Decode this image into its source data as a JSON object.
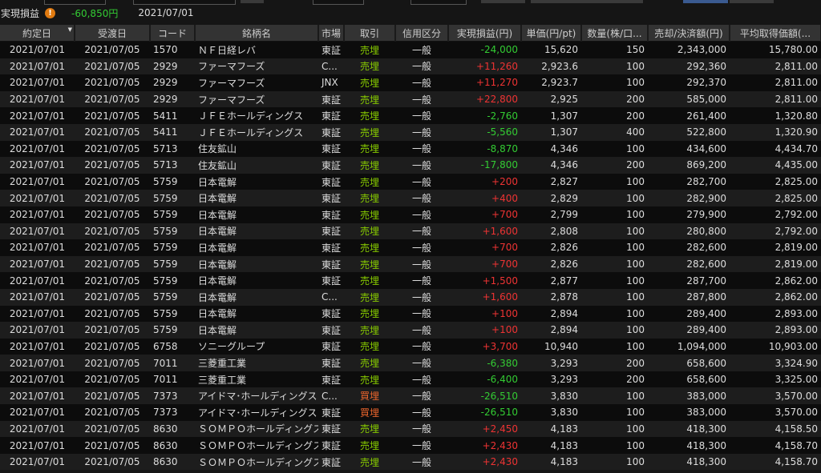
{
  "summary": {
    "label": "実現損益",
    "warn_icon": "exclamation-icon",
    "total": "-60,850円",
    "date": "2021/07/01"
  },
  "colors": {
    "loss": "#33cc33",
    "gain": "#ee3333",
    "sell": "#88cc00",
    "buy": "#e8642c"
  },
  "columns": [
    "約定日",
    "受渡日",
    "コード",
    "銘柄名",
    "市場",
    "取引",
    "信用区分",
    "実現損益(円)",
    "単価(円/pt)",
    "数量(株/口...",
    "売却/決済額(円)",
    "平均取得価額(..."
  ],
  "rows": [
    [
      "2021/07/01",
      "2021/07/05",
      "1570",
      "ＮＦ日経レバ",
      "東証",
      "売埋",
      "一般",
      "-24,000",
      "15,620",
      "150",
      "2,343,000",
      "15,780.00"
    ],
    [
      "2021/07/01",
      "2021/07/05",
      "2929",
      "ファーマフーズ",
      "C...",
      "売埋",
      "一般",
      "+11,260",
      "2,923.6",
      "100",
      "292,360",
      "2,811.00"
    ],
    [
      "2021/07/01",
      "2021/07/05",
      "2929",
      "ファーマフーズ",
      "JNX",
      "売埋",
      "一般",
      "+11,270",
      "2,923.7",
      "100",
      "292,370",
      "2,811.00"
    ],
    [
      "2021/07/01",
      "2021/07/05",
      "2929",
      "ファーマフーズ",
      "東証",
      "売埋",
      "一般",
      "+22,800",
      "2,925",
      "200",
      "585,000",
      "2,811.00"
    ],
    [
      "2021/07/01",
      "2021/07/05",
      "5411",
      "ＪＦＥホールディングス",
      "東証",
      "売埋",
      "一般",
      "-2,760",
      "1,307",
      "200",
      "261,400",
      "1,320.80"
    ],
    [
      "2021/07/01",
      "2021/07/05",
      "5411",
      "ＪＦＥホールディングス",
      "東証",
      "売埋",
      "一般",
      "-5,560",
      "1,307",
      "400",
      "522,800",
      "1,320.90"
    ],
    [
      "2021/07/01",
      "2021/07/05",
      "5713",
      "住友鉱山",
      "東証",
      "売埋",
      "一般",
      "-8,870",
      "4,346",
      "100",
      "434,600",
      "4,434.70"
    ],
    [
      "2021/07/01",
      "2021/07/05",
      "5713",
      "住友鉱山",
      "東証",
      "売埋",
      "一般",
      "-17,800",
      "4,346",
      "200",
      "869,200",
      "4,435.00"
    ],
    [
      "2021/07/01",
      "2021/07/05",
      "5759",
      "日本電解",
      "東証",
      "売埋",
      "一般",
      "+200",
      "2,827",
      "100",
      "282,700",
      "2,825.00"
    ],
    [
      "2021/07/01",
      "2021/07/05",
      "5759",
      "日本電解",
      "東証",
      "売埋",
      "一般",
      "+400",
      "2,829",
      "100",
      "282,900",
      "2,825.00"
    ],
    [
      "2021/07/01",
      "2021/07/05",
      "5759",
      "日本電解",
      "東証",
      "売埋",
      "一般",
      "+700",
      "2,799",
      "100",
      "279,900",
      "2,792.00"
    ],
    [
      "2021/07/01",
      "2021/07/05",
      "5759",
      "日本電解",
      "東証",
      "売埋",
      "一般",
      "+1,600",
      "2,808",
      "100",
      "280,800",
      "2,792.00"
    ],
    [
      "2021/07/01",
      "2021/07/05",
      "5759",
      "日本電解",
      "東証",
      "売埋",
      "一般",
      "+700",
      "2,826",
      "100",
      "282,600",
      "2,819.00"
    ],
    [
      "2021/07/01",
      "2021/07/05",
      "5759",
      "日本電解",
      "東証",
      "売埋",
      "一般",
      "+700",
      "2,826",
      "100",
      "282,600",
      "2,819.00"
    ],
    [
      "2021/07/01",
      "2021/07/05",
      "5759",
      "日本電解",
      "東証",
      "売埋",
      "一般",
      "+1,500",
      "2,877",
      "100",
      "287,700",
      "2,862.00"
    ],
    [
      "2021/07/01",
      "2021/07/05",
      "5759",
      "日本電解",
      "C...",
      "売埋",
      "一般",
      "+1,600",
      "2,878",
      "100",
      "287,800",
      "2,862.00"
    ],
    [
      "2021/07/01",
      "2021/07/05",
      "5759",
      "日本電解",
      "東証",
      "売埋",
      "一般",
      "+100",
      "2,894",
      "100",
      "289,400",
      "2,893.00"
    ],
    [
      "2021/07/01",
      "2021/07/05",
      "5759",
      "日本電解",
      "東証",
      "売埋",
      "一般",
      "+100",
      "2,894",
      "100",
      "289,400",
      "2,893.00"
    ],
    [
      "2021/07/01",
      "2021/07/05",
      "6758",
      "ソニーグループ",
      "東証",
      "売埋",
      "一般",
      "+3,700",
      "10,940",
      "100",
      "1,094,000",
      "10,903.00"
    ],
    [
      "2021/07/01",
      "2021/07/05",
      "7011",
      "三菱重工業",
      "東証",
      "売埋",
      "一般",
      "-6,380",
      "3,293",
      "200",
      "658,600",
      "3,324.90"
    ],
    [
      "2021/07/01",
      "2021/07/05",
      "7011",
      "三菱重工業",
      "東証",
      "売埋",
      "一般",
      "-6,400",
      "3,293",
      "200",
      "658,600",
      "3,325.00"
    ],
    [
      "2021/07/01",
      "2021/07/05",
      "7373",
      "アイドマ･ホールディングス",
      "C...",
      "買埋",
      "一般",
      "-26,510",
      "3,830",
      "100",
      "383,000",
      "3,570.00"
    ],
    [
      "2021/07/01",
      "2021/07/05",
      "7373",
      "アイドマ･ホールディングス",
      "東証",
      "買埋",
      "一般",
      "-26,510",
      "3,830",
      "100",
      "383,000",
      "3,570.00"
    ],
    [
      "2021/07/01",
      "2021/07/05",
      "8630",
      "ＳＯＭＰＯホールディングス",
      "東証",
      "売埋",
      "一般",
      "+2,450",
      "4,183",
      "100",
      "418,300",
      "4,158.50"
    ],
    [
      "2021/07/01",
      "2021/07/05",
      "8630",
      "ＳＯＭＰＯホールディングス",
      "東証",
      "売埋",
      "一般",
      "+2,430",
      "4,183",
      "100",
      "418,300",
      "4,158.70"
    ],
    [
      "2021/07/01",
      "2021/07/05",
      "8630",
      "ＳＯＭＰＯホールディングス",
      "東証",
      "売埋",
      "一般",
      "+2,430",
      "4,183",
      "100",
      "418,300",
      "4,158.70"
    ]
  ]
}
